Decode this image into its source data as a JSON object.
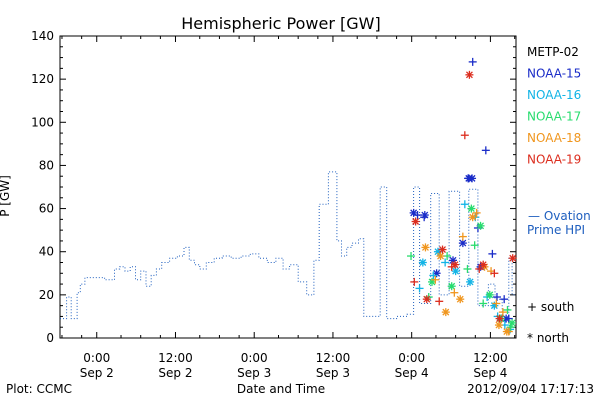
{
  "chart_data": {
    "type": "scatter",
    "title": "Hemispheric Power [GW]",
    "ylabel": "P [GW]",
    "xlabel": "Date and Time",
    "ylim": [
      0,
      140
    ],
    "grid": false,
    "legend_placement": "right",
    "x_ticks": [
      {
        "t": -0.7,
        "label1": "0:00",
        "label2": "Sep 2"
      },
      {
        "t": 11.3,
        "label1": "12:00",
        "label2": "Sep 2"
      },
      {
        "t": 23.3,
        "label1": "0:00",
        "label2": "Sep 3"
      },
      {
        "t": 35.3,
        "label1": "12:00",
        "label2": "Sep 3"
      },
      {
        "t": 47.3,
        "label1": "0:00",
        "label2": "Sep 4"
      },
      {
        "t": 59.3,
        "label1": "12:00",
        "label2": "Sep 4"
      }
    ],
    "xlim": [
      -6.3,
      63.2
    ],
    "y_ticks": [
      0,
      20,
      40,
      60,
      80,
      100,
      120,
      140
    ],
    "ovation": {
      "label1": "— Ovation",
      "label2": "Prime HPI",
      "color": "#1f5fbf",
      "points": [
        [
          -6.3,
          9
        ],
        [
          -5.3,
          9
        ],
        [
          -5.3,
          19
        ],
        [
          -4.6,
          19
        ],
        [
          -4.6,
          9
        ],
        [
          -3.7,
          9
        ],
        [
          -3.7,
          21
        ],
        [
          -3.2,
          21
        ],
        [
          -3.2,
          25
        ],
        [
          -2.5,
          25
        ],
        [
          -2.5,
          28
        ],
        [
          0.5,
          28
        ],
        [
          0.5,
          27
        ],
        [
          2.0,
          27
        ],
        [
          2.0,
          32
        ],
        [
          2.8,
          32
        ],
        [
          2.8,
          33
        ],
        [
          3.6,
          33
        ],
        [
          3.6,
          31
        ],
        [
          4.4,
          31
        ],
        [
          4.4,
          33
        ],
        [
          5.2,
          33
        ],
        [
          5.2,
          27
        ],
        [
          6.0,
          27
        ],
        [
          6.0,
          31
        ],
        [
          6.8,
          31
        ],
        [
          6.8,
          24
        ],
        [
          7.6,
          24
        ],
        [
          7.6,
          29
        ],
        [
          8.4,
          29
        ],
        [
          8.4,
          32
        ],
        [
          9.2,
          32
        ],
        [
          9.2,
          35
        ],
        [
          10.4,
          35
        ],
        [
          10.4,
          37
        ],
        [
          11.6,
          37
        ],
        [
          11.6,
          38
        ],
        [
          12.6,
          38
        ],
        [
          12.6,
          42
        ],
        [
          13.4,
          42
        ],
        [
          13.4,
          36
        ],
        [
          14.2,
          36
        ],
        [
          14.2,
          34
        ],
        [
          15.0,
          34
        ],
        [
          15.0,
          32
        ],
        [
          16.0,
          32
        ],
        [
          16.0,
          35
        ],
        [
          17.2,
          35
        ],
        [
          17.2,
          37
        ],
        [
          18.4,
          37
        ],
        [
          18.4,
          38
        ],
        [
          19.8,
          38
        ],
        [
          19.8,
          37
        ],
        [
          21.3,
          37
        ],
        [
          21.3,
          38
        ],
        [
          22.7,
          38
        ],
        [
          22.7,
          39
        ],
        [
          24.0,
          39
        ],
        [
          24.0,
          37
        ],
        [
          25.3,
          37
        ],
        [
          25.3,
          35
        ],
        [
          26.6,
          35
        ],
        [
          26.6,
          37
        ],
        [
          27.7,
          37
        ],
        [
          27.7,
          32
        ],
        [
          28.7,
          32
        ],
        [
          28.7,
          34
        ],
        [
          30.0,
          34
        ],
        [
          30.0,
          26
        ],
        [
          31.3,
          26
        ],
        [
          31.3,
          20
        ],
        [
          32.4,
          20
        ],
        [
          32.4,
          36
        ],
        [
          33.2,
          36
        ],
        [
          33.2,
          62
        ],
        [
          34.6,
          62
        ],
        [
          34.6,
          77
        ],
        [
          35.9,
          77
        ],
        [
          35.9,
          45
        ],
        [
          36.6,
          45
        ],
        [
          36.6,
          38
        ],
        [
          37.4,
          38
        ],
        [
          37.4,
          42
        ],
        [
          38.2,
          42
        ],
        [
          38.2,
          44
        ],
        [
          39.2,
          44
        ],
        [
          39.2,
          46
        ],
        [
          40.0,
          46
        ],
        [
          40.0,
          10
        ],
        [
          42.5,
          10
        ],
        [
          42.5,
          70
        ],
        [
          43.5,
          70
        ],
        [
          43.5,
          9
        ],
        [
          45.0,
          9
        ],
        [
          45.0,
          10
        ],
        [
          46.6,
          10
        ],
        [
          46.6,
          11
        ],
        [
          47.6,
          11
        ],
        [
          47.6,
          70
        ],
        [
          48.5,
          70
        ],
        [
          48.5,
          16
        ],
        [
          50.2,
          16
        ],
        [
          50.2,
          67
        ],
        [
          51.5,
          67
        ],
        [
          51.5,
          20
        ],
        [
          53.0,
          20
        ],
        [
          53.0,
          68
        ],
        [
          54.6,
          68
        ],
        [
          54.6,
          24
        ],
        [
          56.0,
          24
        ],
        [
          56.0,
          69
        ],
        [
          57.4,
          69
        ],
        [
          57.4,
          15
        ],
        [
          59.0,
          15
        ],
        [
          59.0,
          25
        ],
        [
          60.0,
          25
        ],
        [
          60.0,
          18
        ],
        [
          61.1,
          18
        ],
        [
          61.1,
          8
        ],
        [
          62.1,
          8
        ],
        [
          62.1,
          37
        ],
        [
          62.6,
          37
        ],
        [
          62.6,
          20
        ],
        [
          63.2,
          20
        ]
      ]
    },
    "series": [
      {
        "name": "METP-02",
        "color": "#000000",
        "south": [],
        "north": []
      },
      {
        "name": "NOAA-15",
        "color": "#1a2cc8",
        "south": [
          [
            56.6,
            128
          ],
          [
            58.6,
            87
          ],
          [
            55.9,
            74
          ],
          [
            48.2,
            57
          ],
          [
            49.2,
            56
          ],
          [
            57.4,
            51
          ],
          [
            59.6,
            39
          ],
          [
            61.4,
            18
          ],
          [
            62.1,
            9
          ],
          [
            60.3,
            19
          ]
        ],
        "north": [
          [
            47.6,
            58
          ],
          [
            49.3,
            57
          ],
          [
            56.0,
            74
          ],
          [
            56.5,
            74
          ],
          [
            55.1,
            44
          ],
          [
            53.6,
            36
          ],
          [
            61.7,
            9
          ],
          [
            57.8,
            33
          ],
          [
            51.1,
            30
          ]
        ]
      },
      {
        "name": "NOAA-16",
        "color": "#12b4e6",
        "south": [
          [
            55.4,
            62
          ],
          [
            57.0,
            56
          ],
          [
            48.5,
            23
          ],
          [
            50.6,
            29
          ],
          [
            52.4,
            35
          ],
          [
            58.8,
            19
          ],
          [
            60.4,
            10
          ],
          [
            61.5,
            6
          ],
          [
            62.3,
            4
          ]
        ],
        "north": [
          [
            49.0,
            35
          ],
          [
            51.3,
            40
          ],
          [
            54.0,
            31
          ],
          [
            56.2,
            26
          ],
          [
            59.9,
            15
          ]
        ]
      },
      {
        "name": "NOAA-17",
        "color": "#28dc6e",
        "south": [
          [
            47.2,
            38
          ],
          [
            52.7,
            38
          ],
          [
            56.9,
            43
          ],
          [
            49.9,
            19
          ],
          [
            55.8,
            32
          ],
          [
            58.2,
            16
          ],
          [
            61.9,
            13
          ],
          [
            62.4,
            5
          ]
        ],
        "north": [
          [
            50.4,
            26
          ],
          [
            53.4,
            24
          ],
          [
            56.4,
            60
          ],
          [
            57.8,
            52
          ],
          [
            59.2,
            20
          ],
          [
            60.9,
            9
          ],
          [
            62.6,
            7
          ]
        ]
      },
      {
        "name": "NOAA-18",
        "color": "#f0961e",
        "south": [
          [
            53.8,
            21
          ],
          [
            55.1,
            47
          ],
          [
            57.2,
            58
          ],
          [
            50.9,
            27
          ],
          [
            59.4,
            31
          ],
          [
            60.2,
            16
          ],
          [
            61.2,
            12
          ],
          [
            62.1,
            3
          ]
        ],
        "north": [
          [
            52.5,
            12
          ],
          [
            56.6,
            56
          ],
          [
            54.7,
            18
          ],
          [
            58.4,
            33
          ],
          [
            60.6,
            6
          ],
          [
            61.8,
            3
          ],
          [
            49.4,
            42
          ],
          [
            51.7,
            38
          ]
        ]
      },
      {
        "name": "NOAA-19",
        "color": "#dc2d1e",
        "south": [
          [
            55.4,
            94
          ],
          [
            51.5,
            17
          ],
          [
            53.4,
            33
          ],
          [
            47.7,
            26
          ],
          [
            57.6,
            32
          ],
          [
            59.9,
            30
          ]
        ],
        "north": [
          [
            56.1,
            122
          ],
          [
            47.9,
            54
          ],
          [
            52.0,
            41
          ],
          [
            53.9,
            34
          ],
          [
            58.2,
            34
          ],
          [
            60.7,
            9
          ],
          [
            62.7,
            37
          ],
          [
            49.6,
            18
          ]
        ]
      }
    ],
    "marker_legend": [
      {
        "symbol": "+",
        "label": "south"
      },
      {
        "symbol": "*",
        "label": "north"
      }
    ]
  },
  "footer": {
    "left": "Plot: CCMC",
    "center": "Date and Time",
    "right": "2012/09/04 17:17:13"
  }
}
